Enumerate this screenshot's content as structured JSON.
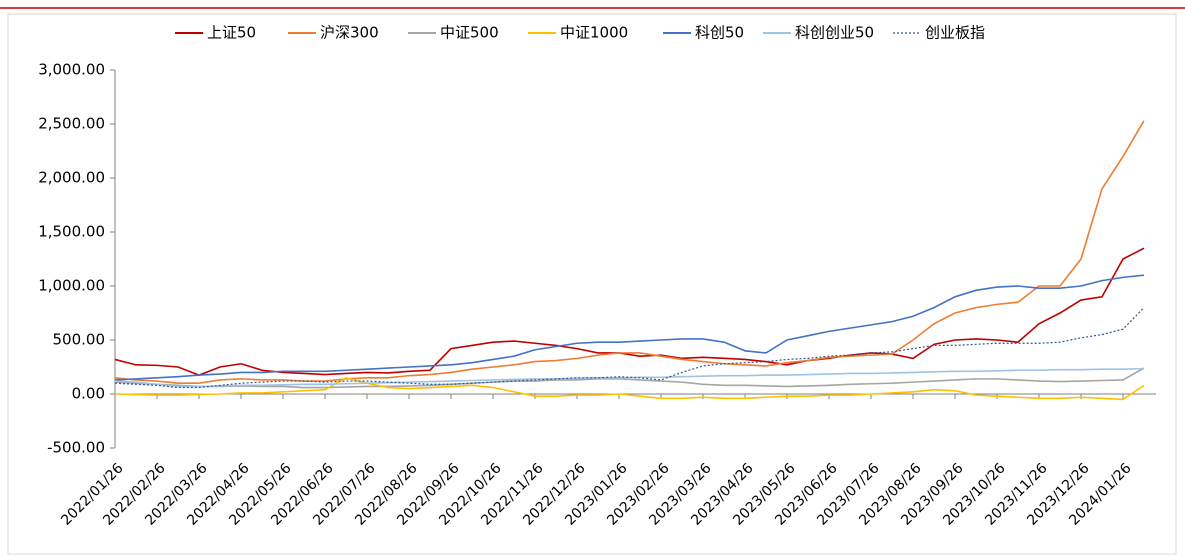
{
  "chart_data": {
    "type": "line",
    "categories": [
      "2022/01/26",
      null,
      "2022/02/26",
      null,
      "2022/03/26",
      null,
      "2022/04/26",
      null,
      "2022/05/26",
      null,
      "2022/06/26",
      null,
      "2022/07/26",
      null,
      "2022/08/26",
      null,
      "2022/09/26",
      null,
      "2022/10/26",
      null,
      "2022/11/26",
      null,
      "2022/12/26",
      null,
      "2023/01/26",
      null,
      "2023/02/26",
      null,
      "2023/03/26",
      null,
      "2023/04/26",
      null,
      "2023/05/26",
      null,
      "2023/06/26",
      null,
      "2023/07/26",
      null,
      "2023/08/26",
      null,
      "2023/09/26",
      null,
      "2023/10/26",
      null,
      "2023/11/26",
      null,
      "2023/12/26",
      null,
      "2024/01/26",
      null
    ],
    "series": [
      {
        "name": "上证50",
        "color": "#c00000",
        "values": [
          320,
          270,
          265,
          250,
          175,
          250,
          280,
          220,
          200,
          190,
          180,
          190,
          200,
          195,
          210,
          220,
          420,
          450,
          480,
          490,
          470,
          450,
          420,
          380,
          380,
          350,
          360,
          330,
          340,
          330,
          320,
          300,
          270,
          310,
          330,
          360,
          380,
          370,
          330,
          460,
          500,
          510,
          500,
          480,
          650,
          750,
          870,
          900,
          1250,
          1350
        ]
      },
      {
        "name": "沪深300",
        "color": "#ed7d31",
        "values": [
          150,
          130,
          120,
          100,
          100,
          130,
          140,
          130,
          130,
          120,
          120,
          140,
          150,
          150,
          170,
          180,
          200,
          230,
          250,
          270,
          300,
          310,
          330,
          360,
          380,
          380,
          350,
          320,
          300,
          280,
          270,
          260,
          290,
          310,
          340,
          350,
          360,
          370,
          500,
          650,
          750,
          800,
          830,
          850,
          1000,
          1000,
          1250,
          1900,
          2200,
          2530
        ]
      },
      {
        "name": "中证500",
        "color": "#a5a5a5",
        "values": [
          110,
          100,
          90,
          80,
          70,
          70,
          75,
          70,
          70,
          60,
          60,
          65,
          70,
          70,
          75,
          80,
          90,
          100,
          110,
          120,
          120,
          130,
          130,
          140,
          140,
          130,
          120,
          110,
          90,
          80,
          80,
          75,
          70,
          75,
          80,
          90,
          95,
          100,
          110,
          120,
          130,
          140,
          140,
          130,
          120,
          115,
          120,
          125,
          130,
          240
        ]
      },
      {
        "name": "中证1000",
        "color": "#ffc000",
        "values": [
          0,
          -5,
          -10,
          -10,
          -5,
          0,
          10,
          10,
          20,
          30,
          40,
          150,
          100,
          60,
          50,
          60,
          70,
          80,
          60,
          20,
          -20,
          -20,
          -10,
          -10,
          0,
          -20,
          -40,
          -40,
          -30,
          -40,
          -40,
          -30,
          -20,
          -20,
          -10,
          -10,
          0,
          10,
          20,
          40,
          30,
          -10,
          -20,
          -30,
          -40,
          -40,
          -30,
          -40,
          -50,
          80
        ]
      },
      {
        "name": "科创50",
        "color": "#4472c4",
        "values": [
          130,
          140,
          150,
          160,
          175,
          185,
          200,
          200,
          210,
          210,
          210,
          220,
          230,
          240,
          250,
          260,
          270,
          290,
          320,
          350,
          410,
          440,
          470,
          480,
          480,
          490,
          500,
          510,
          510,
          480,
          400,
          380,
          500,
          540,
          580,
          610,
          640,
          670,
          720,
          800,
          900,
          960,
          990,
          1000,
          980,
          980,
          1000,
          1050,
          1080,
          1100
        ]
      },
      {
        "name": "科创创业50",
        "color": "#9dc3e6",
        "values": [
          120,
          110,
          90,
          70,
          70,
          75,
          80,
          80,
          85,
          90,
          90,
          95,
          100,
          105,
          110,
          115,
          120,
          125,
          130,
          135,
          140,
          140,
          145,
          150,
          150,
          155,
          155,
          160,
          165,
          170,
          170,
          175,
          175,
          180,
          185,
          190,
          190,
          195,
          200,
          205,
          210,
          210,
          215,
          220,
          220,
          225,
          225,
          230,
          230,
          235
        ]
      },
      {
        "name": "创业板指",
        "color": "#2f5597",
        "dashed": true,
        "values": [
          100,
          90,
          80,
          60,
          60,
          80,
          100,
          110,
          120,
          120,
          110,
          120,
          120,
          110,
          100,
          90,
          90,
          100,
          110,
          120,
          130,
          140,
          150,
          150,
          160,
          150,
          130,
          200,
          260,
          280,
          290,
          300,
          320,
          330,
          350,
          360,
          380,
          390,
          420,
          450,
          450,
          460,
          470,
          470,
          470,
          480,
          520,
          550,
          600,
          800
        ]
      }
    ],
    "ylim": [
      -500,
      3000
    ],
    "yticks": [
      {
        "value": -500,
        "label": "-500.00"
      },
      {
        "value": 0,
        "label": "0.00"
      },
      {
        "value": 500,
        "label": "500.00"
      },
      {
        "value": 1000,
        "label": "1,000.00"
      },
      {
        "value": 1500,
        "label": "1,500.00"
      },
      {
        "value": 2000,
        "label": "2,000.00"
      },
      {
        "value": 2500,
        "label": "2,500.00"
      },
      {
        "value": 3000,
        "label": "3,000.00"
      }
    ],
    "legend": "top"
  }
}
